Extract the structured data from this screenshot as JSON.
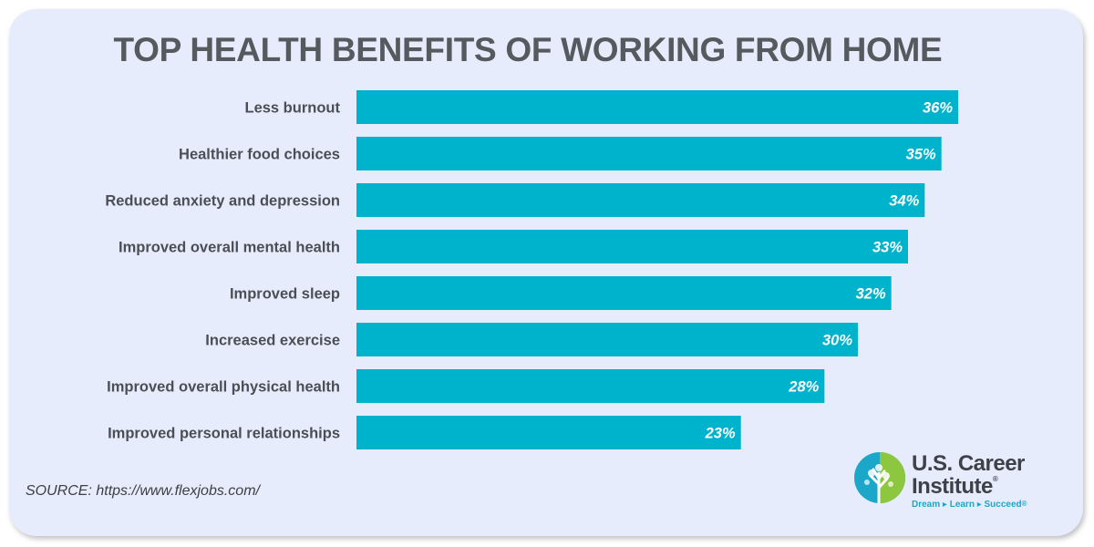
{
  "title": "TOP HEALTH BENEFITS OF WORKING FROM HOME",
  "source": "SOURCE: https://www.flexjobs.com/",
  "logo": {
    "line1": "U.S. Career",
    "line2": "Institute",
    "registered": "®",
    "tagline": "Dream ▸ Learn ▸ Succeed",
    "tagline_mark": "®"
  },
  "colors": {
    "bar": "#00b3cc",
    "background": "#e6ecfb",
    "text": "#4a4f55",
    "label_text": "#ffffff"
  },
  "chart_data": {
    "type": "bar",
    "orientation": "horizontal",
    "title": "TOP HEALTH BENEFITS OF WORKING FROM HOME",
    "categories": [
      "Less burnout",
      "Healthier food choices",
      "Reduced anxiety and depression",
      "Improved overall mental health",
      "Improved sleep",
      "Increased exercise",
      "Improved overall physical health",
      "Improved personal relationships"
    ],
    "values": [
      36,
      35,
      34,
      33,
      32,
      30,
      28,
      23
    ],
    "value_labels": [
      "36%",
      "35%",
      "34%",
      "33%",
      "32%",
      "30%",
      "28%",
      "23%"
    ],
    "unit": "%",
    "xlim": [
      0,
      36
    ],
    "grid": false,
    "legend": "none"
  }
}
